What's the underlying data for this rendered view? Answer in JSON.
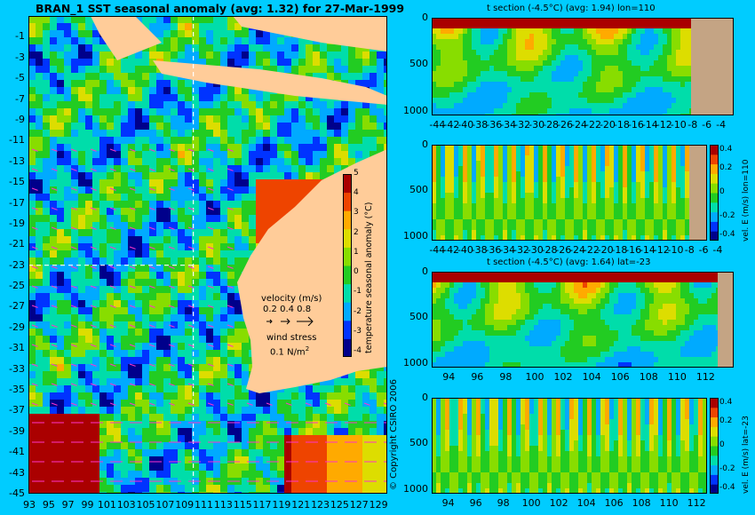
{
  "chart_data": [
    {
      "type": "heatmap",
      "title": "BRAN_1  SST seasonal anomaly (avg: 1.32) for 27-Mar-1999",
      "x_ticks": [
        "93",
        "95",
        "97",
        "99",
        "101",
        "103",
        "105",
        "107",
        "109",
        "111",
        "113",
        "115",
        "117",
        "119",
        "121",
        "123",
        "125",
        "127",
        "129"
      ],
      "y_ticks": [
        "-1",
        "-3",
        "-5",
        "-7",
        "-9",
        "-11",
        "-13",
        "-15",
        "-17",
        "-19",
        "-21",
        "-23",
        "-25",
        "-27",
        "-29",
        "-31",
        "-33",
        "-35",
        "-37",
        "-39",
        "-41",
        "-43",
        "-45"
      ],
      "xlim": [
        93,
        130
      ],
      "ylim": [
        -45,
        1
      ],
      "colorbar": {
        "label": "temperature seasonal anomaly (°C)",
        "ticks": [
          "5",
          "4",
          "3",
          "2",
          "1",
          "0",
          "-1",
          "-2",
          "-3",
          "-4"
        ],
        "range": [
          -4,
          5
        ]
      },
      "legend": {
        "velocity_label": "velocity (m/s)",
        "velocity_values": "0.2 0.4 0.8",
        "wind_label": "wind stress",
        "wind_value": "0.1 N/m",
        "wind_unit_exp": "2"
      },
      "section_lines": {
        "lon": 110,
        "lat": -23
      }
    },
    {
      "type": "heatmap",
      "title": "t section (-4.5°C) (avg: 1.94) lon=110",
      "x_ticks": [
        "-44",
        "-42",
        "-40",
        "-38",
        "-36",
        "-34",
        "-32",
        "-30",
        "-28",
        "-26",
        "-24",
        "-22",
        "-20",
        "-18",
        "-16",
        "-14",
        "-12",
        "-10",
        "-8",
        "-6",
        "-4"
      ],
      "y_ticks": [
        "0",
        "500",
        "1000"
      ]
    },
    {
      "type": "heatmap",
      "title": "",
      "x_ticks": [
        "-44",
        "-42",
        "-40",
        "-38",
        "-36",
        "-34",
        "-32",
        "-30",
        "-28",
        "-26",
        "-24",
        "-22",
        "-20",
        "-18",
        "-16",
        "-14",
        "-12",
        "-10",
        "-8",
        "-6",
        "-4"
      ],
      "y_ticks": [
        "0",
        "500",
        "1000"
      ],
      "colorbar": {
        "label": "vel. E (m/s) lon=110",
        "ticks": [
          "0.4",
          "0.2",
          "0",
          "-0.2",
          "-0.4"
        ]
      }
    },
    {
      "type": "heatmap",
      "title": "t section (-4.5°C) (avg: 1.64) lat=-23",
      "x_ticks": [
        "94",
        "96",
        "98",
        "100",
        "102",
        "104",
        "106",
        "108",
        "110",
        "112"
      ],
      "y_ticks": [
        "0",
        "500",
        "1000"
      ]
    },
    {
      "type": "heatmap",
      "title": "",
      "x_ticks": [
        "94",
        "96",
        "98",
        "100",
        "102",
        "104",
        "106",
        "108",
        "110",
        "112"
      ],
      "y_ticks": [
        "0",
        "500",
        "1000"
      ],
      "colorbar": {
        "label": "vel. E (m/s) lat=-23",
        "ticks": [
          "0.4",
          "0.2",
          "0",
          "-0.2",
          "-0.4"
        ]
      }
    }
  ],
  "copyright": "© Copyright CSIRO 2006",
  "palette": {
    "background": "#00ccff",
    "land": "#ffcc99",
    "section_land": "#c4a484",
    "grid_line": "#ffffff",
    "arrow": "#ff33cc",
    "scale": [
      "#00008b",
      "#0033ff",
      "#00aaff",
      "#00ddaa",
      "#22cc22",
      "#88dd00",
      "#dddd00",
      "#ffaa00",
      "#ee4400",
      "#aa0000"
    ]
  }
}
